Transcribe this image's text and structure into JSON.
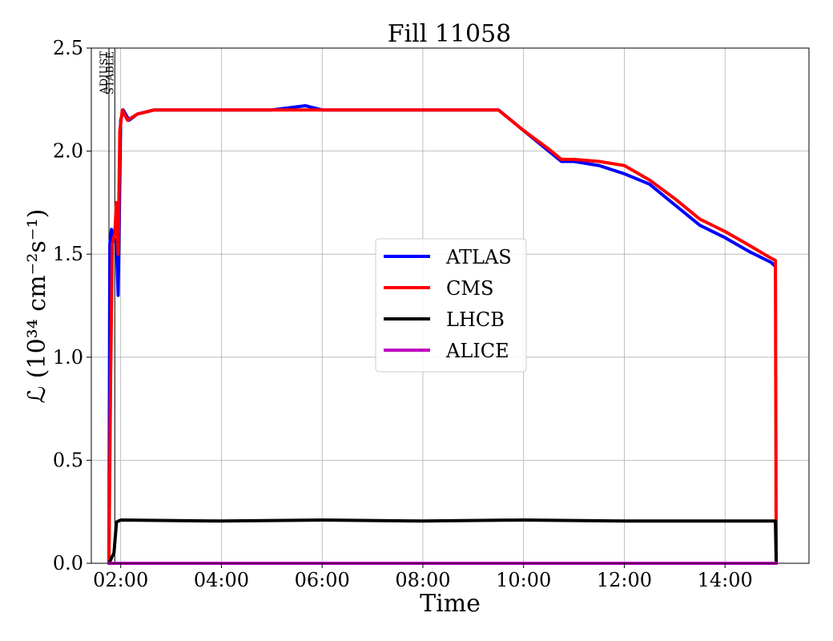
{
  "chart_data": {
    "type": "line",
    "title": "Fill 11058",
    "xlabel": "Time",
    "ylabel": "ℒ (10³⁴ cm⁻²s⁻¹)",
    "xlim": [
      "01:25",
      "15:40"
    ],
    "ylim": [
      0,
      2.5
    ],
    "x_ticks": [
      "02:00",
      "04:00",
      "06:00",
      "08:00",
      "10:00",
      "12:00",
      "14:00"
    ],
    "y_ticks": [
      "0.0",
      "0.5",
      "1.0",
      "1.5",
      "2.0",
      "2.5"
    ],
    "grid": true,
    "legend_position": "center-right",
    "phase_markers": [
      {
        "label": "ADJUST",
        "time": "01:46"
      },
      {
        "label": "STABLE",
        "time": "01:53"
      }
    ],
    "series": [
      {
        "name": "ATLAS",
        "color": "#0000ff",
        "points": [
          [
            "01:46",
            0.0
          ],
          [
            "01:47",
            1.55
          ],
          [
            "01:49",
            1.62
          ],
          [
            "01:52",
            1.58
          ],
          [
            "01:55",
            1.55
          ],
          [
            "01:57",
            1.3
          ],
          [
            "02:00",
            2.15
          ],
          [
            "02:03",
            2.2
          ],
          [
            "02:10",
            2.15
          ],
          [
            "02:20",
            2.18
          ],
          [
            "02:40",
            2.2
          ],
          [
            "03:00",
            2.2
          ],
          [
            "04:00",
            2.2
          ],
          [
            "05:00",
            2.2
          ],
          [
            "05:40",
            2.22
          ],
          [
            "06:00",
            2.2
          ],
          [
            "07:00",
            2.2
          ],
          [
            "08:00",
            2.2
          ],
          [
            "09:00",
            2.2
          ],
          [
            "09:30",
            2.2
          ],
          [
            "10:00",
            2.1
          ],
          [
            "10:30",
            2.0
          ],
          [
            "10:45",
            1.95
          ],
          [
            "11:00",
            1.95
          ],
          [
            "11:30",
            1.93
          ],
          [
            "12:00",
            1.89
          ],
          [
            "12:30",
            1.84
          ],
          [
            "13:00",
            1.74
          ],
          [
            "13:30",
            1.64
          ],
          [
            "14:00",
            1.58
          ],
          [
            "14:30",
            1.51
          ],
          [
            "14:55",
            1.46
          ],
          [
            "15:00",
            1.44
          ]
        ]
      },
      {
        "name": "CMS",
        "color": "#ff0000",
        "points": [
          [
            "01:46",
            0.0
          ],
          [
            "01:48",
            0.9
          ],
          [
            "01:50",
            1.55
          ],
          [
            "01:53",
            1.6
          ],
          [
            "01:55",
            1.75
          ],
          [
            "01:57",
            1.5
          ],
          [
            "01:59",
            2.1
          ],
          [
            "02:02",
            2.2
          ],
          [
            "02:08",
            2.15
          ],
          [
            "02:20",
            2.18
          ],
          [
            "02:40",
            2.2
          ],
          [
            "03:00",
            2.2
          ],
          [
            "04:00",
            2.2
          ],
          [
            "05:00",
            2.2
          ],
          [
            "06:00",
            2.2
          ],
          [
            "07:00",
            2.2
          ],
          [
            "08:00",
            2.2
          ],
          [
            "09:00",
            2.2
          ],
          [
            "09:30",
            2.2
          ],
          [
            "10:00",
            2.1
          ],
          [
            "10:30",
            2.01
          ],
          [
            "10:45",
            1.96
          ],
          [
            "11:00",
            1.96
          ],
          [
            "11:30",
            1.95
          ],
          [
            "12:00",
            1.93
          ],
          [
            "12:30",
            1.86
          ],
          [
            "13:00",
            1.77
          ],
          [
            "13:30",
            1.67
          ],
          [
            "14:00",
            1.61
          ],
          [
            "14:30",
            1.54
          ],
          [
            "14:55",
            1.48
          ],
          [
            "15:00",
            1.47
          ],
          [
            "15:01",
            0.0
          ]
        ]
      },
      {
        "name": "LHCB",
        "color": "#000000",
        "points": [
          [
            "01:46",
            0.0
          ],
          [
            "01:52",
            0.05
          ],
          [
            "01:55",
            0.2
          ],
          [
            "02:00",
            0.21
          ],
          [
            "04:00",
            0.205
          ],
          [
            "06:00",
            0.21
          ],
          [
            "08:00",
            0.205
          ],
          [
            "10:00",
            0.21
          ],
          [
            "12:00",
            0.205
          ],
          [
            "14:00",
            0.205
          ],
          [
            "15:00",
            0.205
          ],
          [
            "15:01",
            0.0
          ]
        ]
      },
      {
        "name": "ALICE",
        "color": "#bf00bf",
        "points": [
          [
            "01:46",
            0.0
          ],
          [
            "15:01",
            0.0
          ]
        ]
      }
    ]
  }
}
